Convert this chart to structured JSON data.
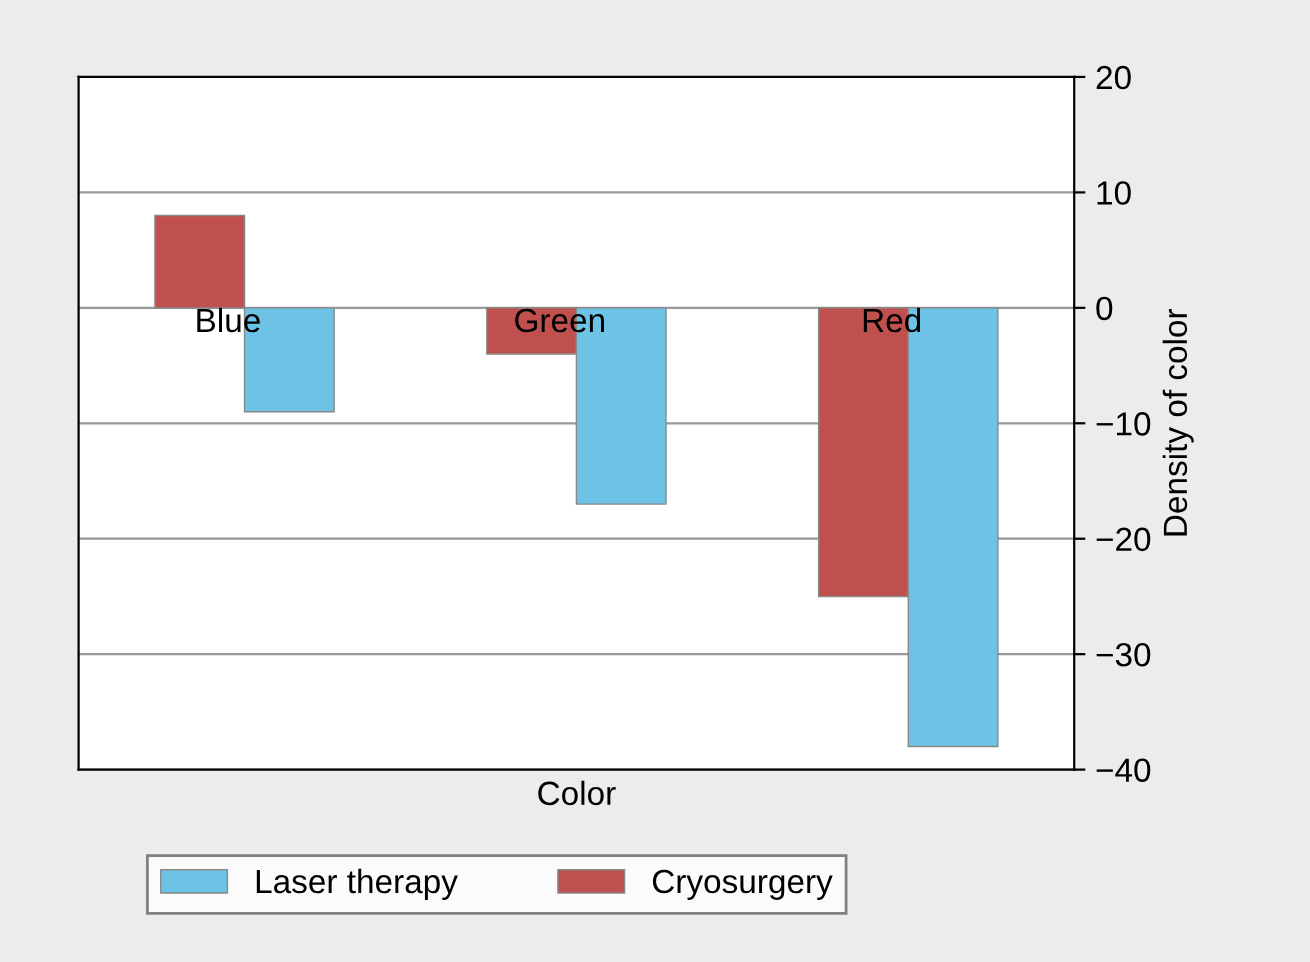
{
  "chart_data": {
    "type": "bar",
    "xlabel": "Color",
    "ylabel": "Density of color",
    "categories": [
      "Blue",
      "Green",
      "Red"
    ],
    "series": [
      {
        "name": "Cryosurgery",
        "color": "#c0504d",
        "values": [
          8,
          -4,
          -25
        ]
      },
      {
        "name": "Laser therapy",
        "color": "#6cc3e6",
        "values": [
          -9,
          -17,
          -38
        ]
      }
    ],
    "ylim": [
      -40,
      20
    ],
    "yticks": [
      -40,
      -30,
      -20,
      -10,
      0,
      10,
      20
    ],
    "grid": "y",
    "legend": "bottom"
  }
}
